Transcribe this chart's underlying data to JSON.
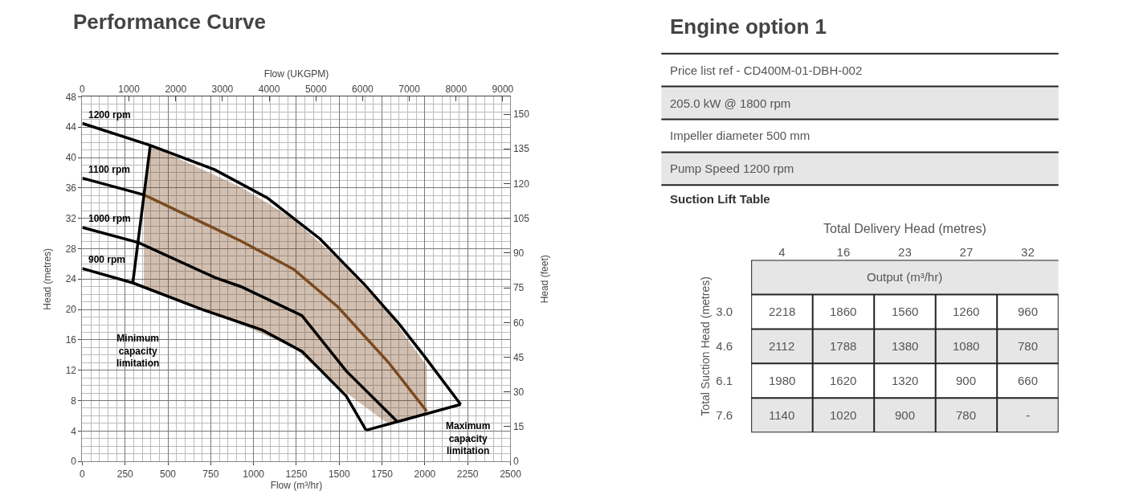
{
  "chart_data": [
    {
      "type": "line",
      "title": "Performance Curve",
      "xlabel": "Flow (m³/hr)",
      "x2label": "Flow (UKGPM)",
      "ylabel": "Head (metres)",
      "y2label": "Head (feet)",
      "xlim": [
        0,
        2500
      ],
      "xticks": [
        0,
        250,
        500,
        750,
        1000,
        1250,
        1500,
        1750,
        2000,
        2250,
        2500
      ],
      "x2lim": [
        0,
        9165
      ],
      "x2ticks": [
        0,
        1000,
        2000,
        3000,
        4000,
        5000,
        6000,
        7000,
        8000,
        9000
      ],
      "ylim": [
        0,
        48
      ],
      "yticks": [
        0,
        4,
        8,
        12,
        16,
        20,
        24,
        28,
        32,
        36,
        40,
        44,
        48
      ],
      "y2lim": [
        0,
        157.5
      ],
      "y2ticks": [
        0,
        15,
        30,
        45,
        60,
        75,
        90,
        105,
        120,
        135,
        150
      ],
      "grid": true,
      "legend": false,
      "marker": "none",
      "line_style": "solid",
      "series": [
        {
          "name": "1200 rpm",
          "color": "#000000",
          "x": [
            0,
            397,
            773,
            1080,
            1388,
            1651,
            1850,
            2002,
            2209
          ],
          "values": [
            44.5,
            41.6,
            38.4,
            34.7,
            29.3,
            23.2,
            18.1,
            13.7,
            7.5
          ]
        },
        {
          "name": "1100 rpm",
          "color": "#000000",
          "x": [
            0,
            359
          ],
          "values": [
            37.3,
            35.1
          ]
        },
        {
          "color": "#7b4a1f",
          "x": [
            359,
            397,
            927,
            1233,
            1494,
            1789,
            2011
          ],
          "values": [
            35.1,
            34.7,
            29.0,
            25.3,
            20.3,
            13.0,
            6.6
          ],
          "lower": [
            23.0,
            22.6,
            18.0,
            15.0,
            9.8,
            4.9,
            6.3
          ],
          "upper": [
            35.1,
            41.6,
            36.1,
            31.9,
            26.6,
            19.5,
            12.6
          ]
        },
        {
          "name": "1000 rpm",
          "color": "#000000",
          "x": [
            0,
            328,
            775,
            927,
            1282,
            1541,
            1836
          ],
          "values": [
            30.8,
            28.8,
            24.2,
            23.0,
            19.2,
            11.9,
            5.3
          ]
        },
        {
          "name": "900 rpm",
          "color": "#000000",
          "x": [
            0,
            295,
            700,
            1050,
            1282,
            1541,
            1657
          ],
          "values": [
            25.4,
            23.5,
            20.0,
            17.3,
            14.5,
            8.6,
            4.1
          ]
        },
        {
          "color": "#000000",
          "x": [
            295,
            397
          ],
          "values": [
            23.5,
            41.6
          ]
        },
        {
          "color": "#000000",
          "x": [
            1657,
            2209
          ],
          "values": [
            4.1,
            7.5
          ]
        }
      ],
      "annotations": [
        "Minimum\ncapacity\nlimitation",
        "Maximum\ncapacity\nlimitation"
      ]
    },
    {
      "type": "other",
      "title": "Engine option 1",
      "annotations": [
        "Price list ref - CD400M-01-DBH-002",
        "205.0 kW @ 1800 rpm",
        "Impeller diameter 500 mm",
        "Pump Speed 1200 rpm"
      ]
    },
    {
      "type": "other",
      "title": "Suction Lift Table",
      "xlabel": "Total Delivery Head (metres)",
      "ylabel": "Total Suction Head (metres)",
      "annotations": [
        "Output (m³/hr)"
      ],
      "categories": [
        "4",
        "16",
        "23",
        "27",
        "32"
      ],
      "y_categories": [
        "3.0",
        "4.6",
        "6.1",
        "7.6"
      ],
      "cell_labels": [
        [
          "2218",
          "1860",
          "1560",
          "1260",
          "960"
        ],
        [
          "2112",
          "1788",
          "1380",
          "1080",
          "780"
        ],
        [
          "1980",
          "1620",
          "1320",
          "900",
          "660"
        ],
        [
          "1140",
          "1020",
          "900",
          "780",
          "-"
        ]
      ]
    }
  ]
}
